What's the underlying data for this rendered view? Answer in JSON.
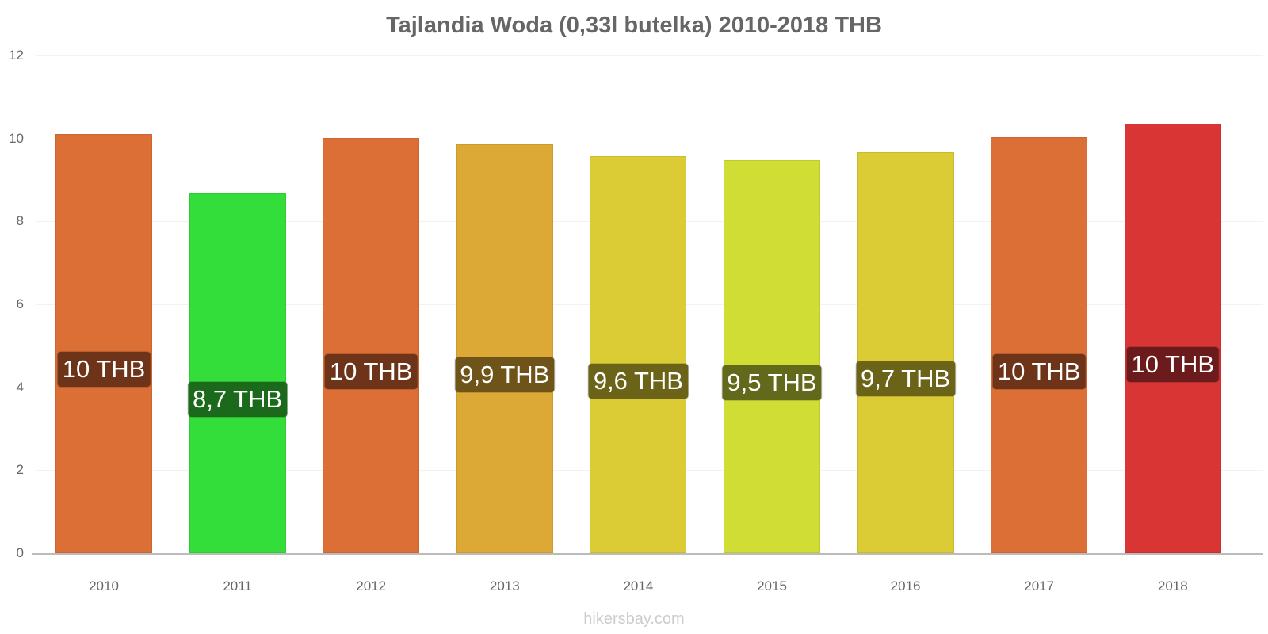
{
  "chart_data": {
    "type": "bar",
    "title": "Tajlandia Woda (0,33l butelka) 2010-2018 THB",
    "xlabel": "",
    "ylabel": "",
    "ylim": [
      0,
      12
    ],
    "yticks": [
      0,
      2,
      4,
      6,
      8,
      10,
      12
    ],
    "grid": true,
    "legend": null,
    "categories": [
      "2010",
      "2011",
      "2012",
      "2013",
      "2014",
      "2015",
      "2016",
      "2017",
      "2018"
    ],
    "values": [
      10.11,
      8.68,
      10.01,
      9.86,
      9.57,
      9.48,
      9.67,
      10.03,
      10.36
    ],
    "data_labels": [
      "10 THB",
      "8,7 THB",
      "10 THB",
      "9,9 THB",
      "9,6 THB",
      "9,5 THB",
      "9,7 THB",
      "10 THB",
      "10 THB"
    ],
    "bar_colors": [
      "#dc6f35",
      "#33dd3a",
      "#dc6f35",
      "#dca936",
      "#dbcb35",
      "#cfdd35",
      "#dbcb35",
      "#dc6f35",
      "#d93535"
    ],
    "label_colors": [
      "#6e3419",
      "#1b6a1b",
      "#6e3419",
      "#6e5418",
      "#6a6318",
      "#63691a",
      "#6a6318",
      "#6e3419",
      "#6b1b1b"
    ],
    "source": "hikersbay.com"
  }
}
